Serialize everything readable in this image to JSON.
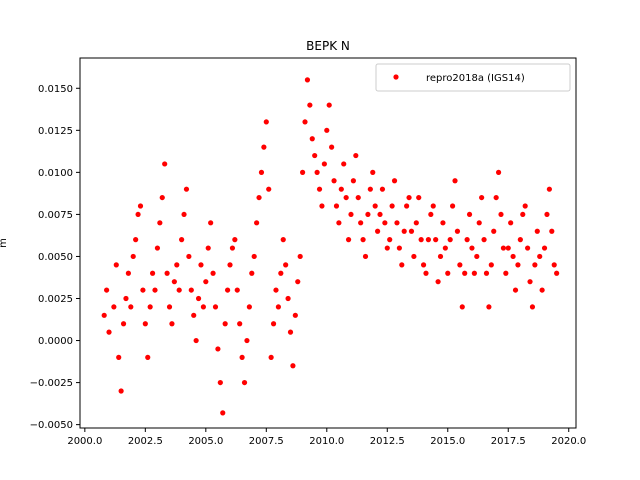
{
  "chart_data": {
    "type": "scatter",
    "title": "BEPK N",
    "ylabel": "m",
    "xlabel": "",
    "xlim": [
      1999.8,
      2020.3
    ],
    "ylim": [
      -0.0052,
      0.0168
    ],
    "x_ticks": [
      2000.0,
      2002.5,
      2005.0,
      2007.5,
      2010.0,
      2012.5,
      2015.0,
      2017.5,
      2020.0
    ],
    "x_tick_labels": [
      "2000.0",
      "2002.5",
      "2005.0",
      "2007.5",
      "2010.0",
      "2012.5",
      "2015.0",
      "2017.5",
      "2020.0"
    ],
    "y_ticks": [
      -0.005,
      -0.0025,
      0.0,
      0.0025,
      0.005,
      0.0075,
      0.01,
      0.0125,
      0.015
    ],
    "y_tick_labels": [
      "−0.0050",
      "−0.0025",
      "0.0000",
      "0.0025",
      "0.0050",
      "0.0075",
      "0.0100",
      "0.0125",
      "0.0150"
    ],
    "grid": false,
    "legend_position": "top-right",
    "series": [
      {
        "name": "repro2018a (IGS14)",
        "color": "#ff0000",
        "marker": "circle",
        "points": [
          [
            2000.8,
            0.0015
          ],
          [
            2000.9,
            0.003
          ],
          [
            2001.0,
            0.0005
          ],
          [
            2001.2,
            0.002
          ],
          [
            2001.3,
            0.0045
          ],
          [
            2001.4,
            -0.001
          ],
          [
            2001.5,
            -0.003
          ],
          [
            2001.6,
            0.001
          ],
          [
            2001.7,
            0.0025
          ],
          [
            2001.8,
            0.004
          ],
          [
            2001.9,
            0.002
          ],
          [
            2002.0,
            0.005
          ],
          [
            2002.1,
            0.006
          ],
          [
            2002.2,
            0.0075
          ],
          [
            2002.3,
            0.008
          ],
          [
            2002.4,
            0.003
          ],
          [
            2002.5,
            0.001
          ],
          [
            2002.6,
            -0.001
          ],
          [
            2002.7,
            0.002
          ],
          [
            2002.8,
            0.004
          ],
          [
            2002.9,
            0.003
          ],
          [
            2003.0,
            0.0055
          ],
          [
            2003.1,
            0.007
          ],
          [
            2003.2,
            0.0085
          ],
          [
            2003.3,
            0.0105
          ],
          [
            2003.4,
            0.004
          ],
          [
            2003.5,
            0.002
          ],
          [
            2003.6,
            0.001
          ],
          [
            2003.7,
            0.0035
          ],
          [
            2003.8,
            0.0045
          ],
          [
            2003.9,
            0.003
          ],
          [
            2004.0,
            0.006
          ],
          [
            2004.1,
            0.0075
          ],
          [
            2004.2,
            0.009
          ],
          [
            2004.3,
            0.005
          ],
          [
            2004.4,
            0.003
          ],
          [
            2004.5,
            0.0015
          ],
          [
            2004.6,
            0.0
          ],
          [
            2004.7,
            0.0025
          ],
          [
            2004.8,
            0.0045
          ],
          [
            2004.9,
            0.002
          ],
          [
            2005.0,
            0.0035
          ],
          [
            2005.1,
            0.0055
          ],
          [
            2005.2,
            0.007
          ],
          [
            2005.3,
            0.004
          ],
          [
            2005.4,
            0.002
          ],
          [
            2005.5,
            -0.0005
          ],
          [
            2005.6,
            -0.0025
          ],
          [
            2005.7,
            -0.0043
          ],
          [
            2005.8,
            0.001
          ],
          [
            2005.9,
            0.003
          ],
          [
            2006.0,
            0.0045
          ],
          [
            2006.1,
            0.0055
          ],
          [
            2006.2,
            0.006
          ],
          [
            2006.3,
            0.003
          ],
          [
            2006.4,
            0.001
          ],
          [
            2006.5,
            -0.001
          ],
          [
            2006.6,
            -0.0025
          ],
          [
            2006.7,
            0.0
          ],
          [
            2006.8,
            0.002
          ],
          [
            2006.9,
            0.004
          ],
          [
            2007.0,
            0.005
          ],
          [
            2007.1,
            0.007
          ],
          [
            2007.2,
            0.0085
          ],
          [
            2007.3,
            0.01
          ],
          [
            2007.4,
            0.0115
          ],
          [
            2007.5,
            0.013
          ],
          [
            2007.6,
            0.009
          ],
          [
            2007.7,
            -0.001
          ],
          [
            2007.8,
            0.001
          ],
          [
            2007.9,
            0.003
          ],
          [
            2008.0,
            0.002
          ],
          [
            2008.1,
            0.004
          ],
          [
            2008.2,
            0.006
          ],
          [
            2008.3,
            0.0045
          ],
          [
            2008.4,
            0.0025
          ],
          [
            2008.5,
            0.0005
          ],
          [
            2008.6,
            -0.0015
          ],
          [
            2008.7,
            0.0015
          ],
          [
            2008.8,
            0.0035
          ],
          [
            2008.9,
            0.005
          ],
          [
            2009.0,
            0.01
          ],
          [
            2009.1,
            0.013
          ],
          [
            2009.2,
            0.0155
          ],
          [
            2009.3,
            0.014
          ],
          [
            2009.4,
            0.012
          ],
          [
            2009.5,
            0.011
          ],
          [
            2009.6,
            0.01
          ],
          [
            2009.7,
            0.009
          ],
          [
            2009.8,
            0.008
          ],
          [
            2009.9,
            0.0105
          ],
          [
            2010.0,
            0.0125
          ],
          [
            2010.1,
            0.014
          ],
          [
            2010.2,
            0.0115
          ],
          [
            2010.3,
            0.0095
          ],
          [
            2010.4,
            0.008
          ],
          [
            2010.5,
            0.007
          ],
          [
            2010.6,
            0.009
          ],
          [
            2010.7,
            0.0105
          ],
          [
            2010.8,
            0.0085
          ],
          [
            2010.9,
            0.006
          ],
          [
            2011.0,
            0.0075
          ],
          [
            2011.1,
            0.0095
          ],
          [
            2011.2,
            0.011
          ],
          [
            2011.3,
            0.0085
          ],
          [
            2011.4,
            0.007
          ],
          [
            2011.5,
            0.006
          ],
          [
            2011.6,
            0.005
          ],
          [
            2011.7,
            0.0075
          ],
          [
            2011.8,
            0.009
          ],
          [
            2011.9,
            0.01
          ],
          [
            2012.0,
            0.008
          ],
          [
            2012.1,
            0.0065
          ],
          [
            2012.2,
            0.0075
          ],
          [
            2012.3,
            0.009
          ],
          [
            2012.4,
            0.007
          ],
          [
            2012.5,
            0.0055
          ],
          [
            2012.6,
            0.006
          ],
          [
            2012.7,
            0.008
          ],
          [
            2012.8,
            0.0095
          ],
          [
            2012.9,
            0.007
          ],
          [
            2013.0,
            0.0055
          ],
          [
            2013.1,
            0.0045
          ],
          [
            2013.2,
            0.0065
          ],
          [
            2013.3,
            0.008
          ],
          [
            2013.4,
            0.0085
          ],
          [
            2013.5,
            0.0065
          ],
          [
            2013.6,
            0.005
          ],
          [
            2013.7,
            0.007
          ],
          [
            2013.8,
            0.0085
          ],
          [
            2013.9,
            0.006
          ],
          [
            2014.0,
            0.0045
          ],
          [
            2014.1,
            0.004
          ],
          [
            2014.2,
            0.006
          ],
          [
            2014.3,
            0.0075
          ],
          [
            2014.4,
            0.008
          ],
          [
            2014.5,
            0.006
          ],
          [
            2014.6,
            0.0035
          ],
          [
            2014.7,
            0.005
          ],
          [
            2014.8,
            0.007
          ],
          [
            2014.9,
            0.0055
          ],
          [
            2015.0,
            0.004
          ],
          [
            2015.1,
            0.006
          ],
          [
            2015.2,
            0.008
          ],
          [
            2015.3,
            0.0095
          ],
          [
            2015.4,
            0.0065
          ],
          [
            2015.5,
            0.0045
          ],
          [
            2015.6,
            0.002
          ],
          [
            2015.7,
            0.004
          ],
          [
            2015.8,
            0.006
          ],
          [
            2015.9,
            0.0075
          ],
          [
            2016.0,
            0.0055
          ],
          [
            2016.1,
            0.004
          ],
          [
            2016.2,
            0.005
          ],
          [
            2016.3,
            0.007
          ],
          [
            2016.4,
            0.0085
          ],
          [
            2016.5,
            0.006
          ],
          [
            2016.6,
            0.004
          ],
          [
            2016.7,
            0.002
          ],
          [
            2016.8,
            0.0045
          ],
          [
            2016.9,
            0.0065
          ],
          [
            2017.0,
            0.0085
          ],
          [
            2017.1,
            0.01
          ],
          [
            2017.2,
            0.0075
          ],
          [
            2017.3,
            0.0055
          ],
          [
            2017.4,
            0.004
          ],
          [
            2017.5,
            0.0055
          ],
          [
            2017.6,
            0.007
          ],
          [
            2017.7,
            0.005
          ],
          [
            2017.8,
            0.003
          ],
          [
            2017.9,
            0.0045
          ],
          [
            2018.0,
            0.006
          ],
          [
            2018.1,
            0.0075
          ],
          [
            2018.2,
            0.008
          ],
          [
            2018.3,
            0.0055
          ],
          [
            2018.4,
            0.0035
          ],
          [
            2018.5,
            0.002
          ],
          [
            2018.6,
            0.0045
          ],
          [
            2018.7,
            0.0065
          ],
          [
            2018.8,
            0.005
          ],
          [
            2018.9,
            0.003
          ],
          [
            2019.0,
            0.0055
          ],
          [
            2019.1,
            0.0075
          ],
          [
            2019.2,
            0.009
          ],
          [
            2019.3,
            0.0065
          ],
          [
            2019.4,
            0.0045
          ],
          [
            2019.5,
            0.004
          ]
        ]
      }
    ]
  }
}
